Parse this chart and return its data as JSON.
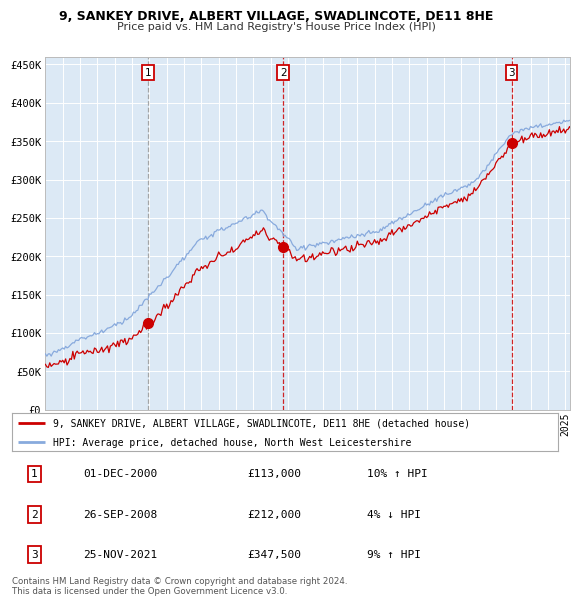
{
  "title": "9, SANKEY DRIVE, ALBERT VILLAGE, SWADLINCOTE, DE11 8HE",
  "subtitle": "Price paid vs. HM Land Registry's House Price Index (HPI)",
  "legend_property": "9, SANKEY DRIVE, ALBERT VILLAGE, SWADLINCOTE, DE11 8HE (detached house)",
  "legend_hpi": "HPI: Average price, detached house, North West Leicestershire",
  "transactions": [
    {
      "num": 1,
      "date": "01-DEC-2000",
      "price": 113000,
      "pct": "10%",
      "dir": "↑",
      "year_x": 2000.92
    },
    {
      "num": 2,
      "date": "26-SEP-2008",
      "price": 212000,
      "pct": "4%",
      "dir": "↓",
      "year_x": 2008.73
    },
    {
      "num": 3,
      "date": "25-NOV-2021",
      "price": 347500,
      "pct": "9%",
      "dir": "↑",
      "year_x": 2021.9
    }
  ],
  "ylim": [
    0,
    460000
  ],
  "xlim_start": 1995.0,
  "xlim_end": 2025.3,
  "background_color": "#dce9f5",
  "grid_color": "#ffffff",
  "property_line_color": "#cc0000",
  "hpi_line_color": "#88aadd",
  "vline1_color": "#999999",
  "vline2_color": "#cc0000",
  "vline3_color": "#cc0000",
  "footer": "Contains HM Land Registry data © Crown copyright and database right 2024.\nThis data is licensed under the Open Government Licence v3.0.",
  "ytick_labels": [
    "£0",
    "£50K",
    "£100K",
    "£150K",
    "£200K",
    "£250K",
    "£300K",
    "£350K",
    "£400K",
    "£450K"
  ],
  "ytick_values": [
    0,
    50000,
    100000,
    150000,
    200000,
    250000,
    300000,
    350000,
    400000,
    450000
  ]
}
